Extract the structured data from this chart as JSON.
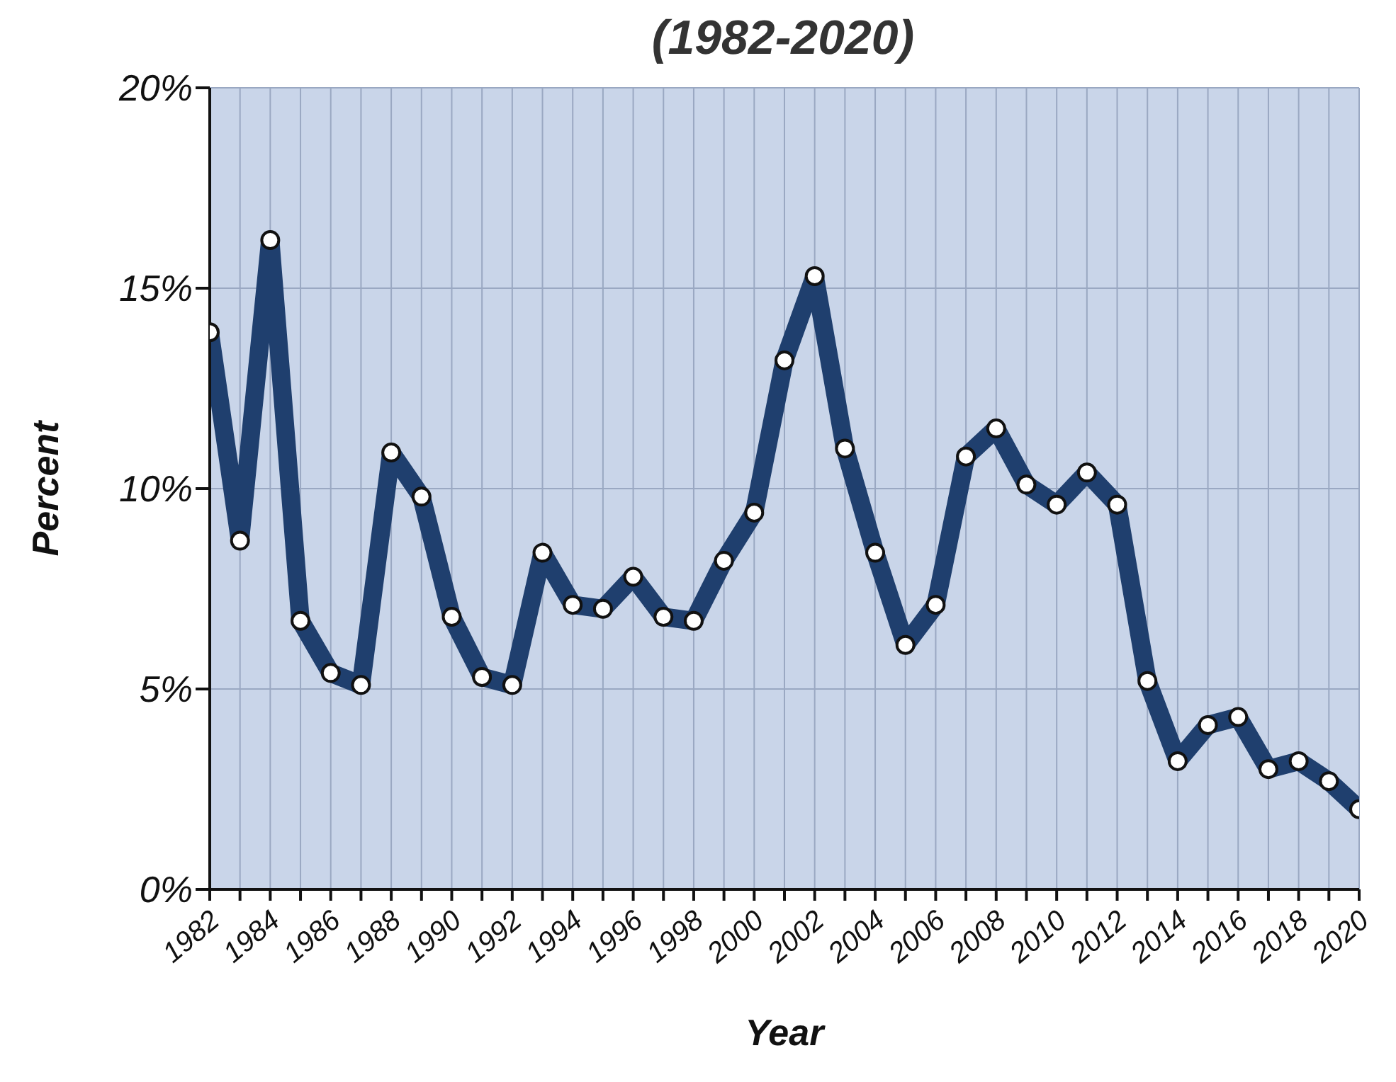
{
  "chart_data": {
    "type": "line",
    "title": "(1982-2020)",
    "xlabel": "Year",
    "ylabel": "Percent",
    "x": [
      1982,
      1983,
      1984,
      1985,
      1986,
      1987,
      1988,
      1989,
      1990,
      1991,
      1992,
      1993,
      1994,
      1995,
      1996,
      1997,
      1998,
      1999,
      2000,
      2001,
      2002,
      2003,
      2004,
      2005,
      2006,
      2007,
      2008,
      2009,
      2010,
      2011,
      2012,
      2013,
      2014,
      2015,
      2016,
      2017,
      2018,
      2019,
      2020
    ],
    "series": [
      {
        "color": "#1f3f6e",
        "values": [
          13.9,
          8.7,
          16.2,
          6.7,
          5.4,
          5.1,
          10.9,
          9.8,
          6.8,
          5.3,
          5.1,
          8.4,
          7.1,
          7.0,
          7.8,
          6.8,
          6.7,
          8.2,
          9.4,
          13.2,
          15.3,
          11.0,
          8.4,
          6.1,
          7.1,
          10.8,
          11.5,
          10.1,
          9.6,
          10.4,
          9.6,
          5.2,
          3.2,
          4.1,
          4.3,
          3.0,
          3.2,
          2.7,
          2.0
        ]
      }
    ],
    "xlim": [
      1982,
      2020
    ],
    "xticks": [
      1982,
      {
        "value": 1983,
        "label": null
      },
      1984,
      {
        "value": 1985,
        "label": null
      },
      1986,
      {
        "value": 1987,
        "label": null
      },
      1988,
      {
        "value": 1989,
        "label": null
      },
      1990,
      {
        "value": 1991,
        "label": null
      },
      1992,
      {
        "value": 1993,
        "label": null
      },
      1994,
      {
        "value": 1995,
        "label": null
      },
      1996,
      {
        "value": 1997,
        "label": null
      },
      1998,
      {
        "value": 1999,
        "label": null
      },
      2000,
      {
        "value": 2001,
        "label": null
      },
      2002,
      {
        "value": 2003,
        "label": null
      },
      2004,
      {
        "value": 2005,
        "label": null
      },
      2006,
      {
        "value": 2007,
        "label": null
      },
      2008,
      {
        "value": 2009,
        "label": null
      },
      2010,
      {
        "value": 2011,
        "label": null
      },
      2012,
      {
        "value": 2013,
        "label": null
      },
      2014,
      {
        "value": 2015,
        "label": null
      },
      2016,
      {
        "value": 2017,
        "label": null
      },
      2018,
      {
        "value": 2019,
        "label": null
      },
      2020
    ],
    "ylim": [
      0,
      20
    ],
    "yticks": [
      {
        "value": 0,
        "label": "0%"
      },
      {
        "value": 5,
        "label": "5%"
      },
      {
        "value": 10,
        "label": "10%"
      },
      {
        "value": 15,
        "label": "15%"
      },
      {
        "value": 20,
        "label": "20%"
      }
    ],
    "grid": true,
    "marker": "circle",
    "line_style": "solid"
  }
}
